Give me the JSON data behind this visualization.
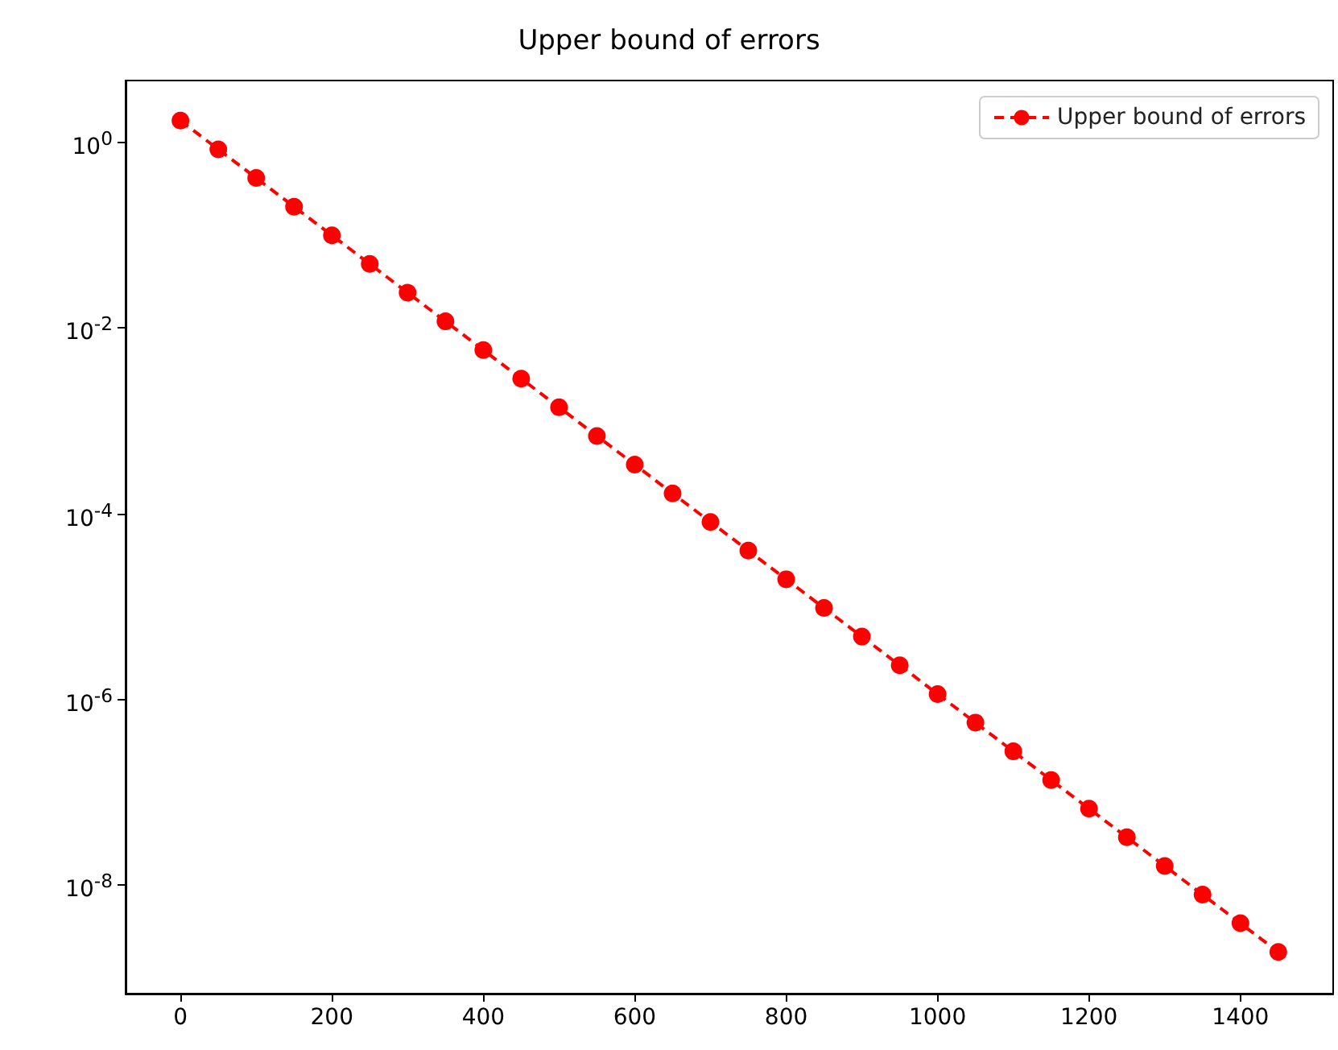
{
  "chart_data": {
    "type": "line",
    "title": "Upper bound of errors",
    "x": [
      0,
      50,
      100,
      150,
      200,
      250,
      300,
      350,
      400,
      450,
      500,
      550,
      600,
      650,
      700,
      750,
      800,
      850,
      900,
      950,
      1000,
      1050,
      1100,
      1150,
      1200,
      1250,
      1300,
      1350,
      1400,
      1450
    ],
    "series": [
      {
        "name": "Upper bound of errors",
        "color": "#ff0000",
        "values": [
          1.7,
          0.835,
          0.41,
          0.201,
          0.0989,
          0.0486,
          0.0238,
          0.0117,
          0.00575,
          0.00283,
          0.00139,
          0.000682,
          0.000335,
          0.000164,
          8.07e-05,
          3.97e-05,
          1.95e-05,
          9.57e-06,
          4.7e-06,
          2.31e-06,
          1.13e-06,
          5.57e-07,
          2.73e-07,
          1.34e-07,
          6.59e-08,
          3.24e-08,
          1.59e-08,
          7.81e-09,
          3.84e-09,
          1.88e-09
        ]
      }
    ],
    "xlim": [
      -72.5,
      1522.5
    ],
    "xticks": [
      0,
      200,
      400,
      600,
      800,
      1000,
      1200,
      1400
    ],
    "ylim": [
      6.7e-10,
      4.6
    ],
    "yticks": [
      {
        "value": 1,
        "label": "10$^{0}$"
      },
      {
        "value": 0.01,
        "label": "10$^{-2}$"
      },
      {
        "value": 0.0001,
        "label": "10$^{-4}$"
      },
      {
        "value": 1e-06,
        "label": "10$^{-6}$"
      },
      {
        "value": 1e-08,
        "label": "10$^{-8}$"
      }
    ],
    "log": "y",
    "grid": false,
    "legend": "top right",
    "marker": "circle",
    "line_style": "dashed"
  }
}
